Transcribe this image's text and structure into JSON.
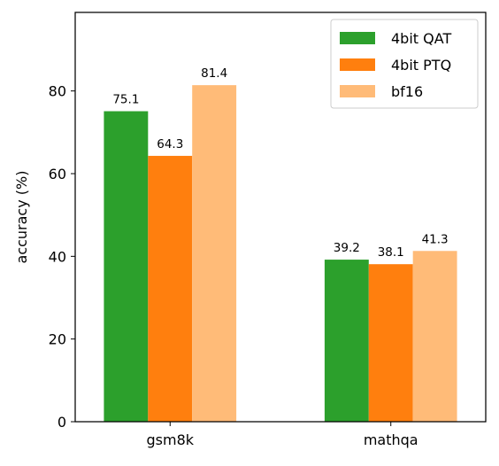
{
  "chart_data": {
    "type": "bar",
    "title": "",
    "xlabel": "",
    "ylabel": "accuracy (%)",
    "categories": [
      "gsm8k",
      "mathqa"
    ],
    "series": [
      {
        "name": "4bit QAT",
        "values": [
          75.1,
          39.2
        ],
        "color": "#2ca02c",
        "labels": [
          "75.1",
          "39.2"
        ]
      },
      {
        "name": "4bit PTQ",
        "values": [
          64.3,
          38.1
        ],
        "color": "#ff7f0e",
        "labels": [
          "64.3",
          "38.1"
        ]
      },
      {
        "name": "bf16",
        "values": [
          81.4,
          41.3
        ],
        "color": "#ffbb78",
        "labels": [
          "81.4",
          "41.3"
        ]
      }
    ],
    "ylim": [
      0,
      99
    ],
    "yticks": [
      0,
      20,
      40,
      60,
      80
    ],
    "grid": false,
    "legend_position": "top-right"
  }
}
